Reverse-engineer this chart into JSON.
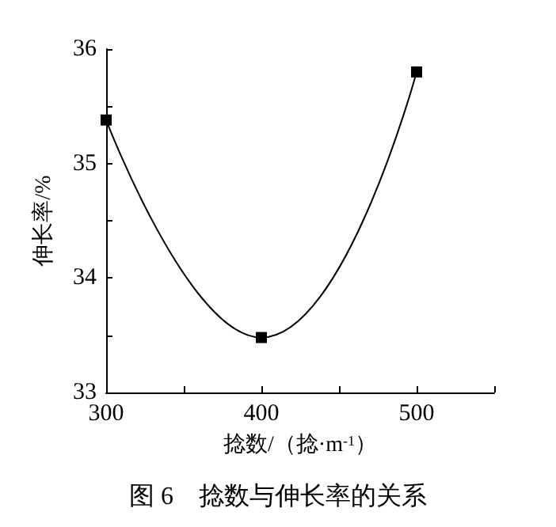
{
  "chart_data": {
    "type": "line",
    "title": "图 6　捻数与伸长率的关系",
    "xlabel": "捻数/（捻·m$^{-1}$）",
    "ylabel": "伸长率/%",
    "x": [
      300,
      400,
      500
    ],
    "series": [
      {
        "color": "#000000",
        "values": [
          35.38,
          33.48,
          35.8
        ]
      }
    ],
    "xlim": [
      300,
      550
    ],
    "xticks": [
      300,
      {
        "value": 350,
        "label": null
      },
      400,
      {
        "value": 450,
        "label": null
      },
      500,
      {
        "value": 550,
        "label": null
      }
    ],
    "ylim": [
      33,
      36
    ],
    "yticks": [
      33,
      {
        "value": 33.5,
        "label": null
      },
      34,
      {
        "value": 34.5,
        "label": null
      },
      35,
      {
        "value": 35.5,
        "label": null
      },
      36
    ],
    "marker": "square",
    "line_style": "solid"
  }
}
